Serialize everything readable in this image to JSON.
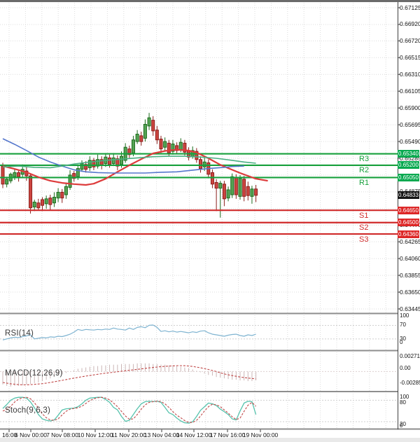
{
  "chart_data": {
    "type": "candlestick",
    "title": "AUD/USD 4H chart with pivot levels, moving averages, RSI, MACD and Stochastic",
    "x_axis": {
      "labels": [
        "16:00",
        "6 Nov 00:00",
        "7 Nov 08:00",
        "10 Nov 12:00",
        "11 Nov 20:00",
        "13 Nov 04:00",
        "14 Nov 12:00",
        "17 Nov 16:00",
        "19 Nov 00:00"
      ],
      "positions": [
        13,
        44,
        89,
        136,
        184,
        231,
        277,
        325,
        372
      ]
    },
    "y_axis": {
      "ticks": [
        {
          "text": "0.67125",
          "p": 0.67125
        },
        {
          "text": "0.66920",
          "p": 0.6692
        },
        {
          "text": "0.66720",
          "p": 0.6672
        },
        {
          "text": "0.66515",
          "p": 0.66515
        },
        {
          "text": "0.66310",
          "p": 0.6631
        },
        {
          "text": "0.66105",
          "p": 0.66105
        },
        {
          "text": "0.65900",
          "p": 0.659
        },
        {
          "text": "0.65695",
          "p": 0.65695
        },
        {
          "text": "0.65490",
          "p": 0.6549
        },
        {
          "text": "0.65285",
          "p": 0.65285
        },
        {
          "text": "0.64875",
          "p": 0.64875
        },
        {
          "text": "0.64470",
          "p": 0.6447
        },
        {
          "text": "0.64265",
          "p": 0.64265
        },
        {
          "text": "0.64060",
          "p": 0.6406
        },
        {
          "text": "0.63855",
          "p": 0.63855
        },
        {
          "text": "0.63650",
          "p": 0.6365
        },
        {
          "text": "0.63445",
          "p": 0.63445
        }
      ],
      "grid_prices": [
        0.67125,
        0.6692,
        0.6672,
        0.66515,
        0.6631,
        0.66105,
        0.659,
        0.65695,
        0.6549,
        0.65285,
        0.6508,
        0.64875,
        0.6467,
        0.6447,
        0.64265,
        0.6406,
        0.63855,
        0.6365,
        0.63445
      ],
      "range": [
        0.63445,
        0.67125
      ]
    },
    "pivots": [
      {
        "label": "R3",
        "box": "0.65340",
        "price": 0.6534,
        "kind": "resistance"
      },
      {
        "label": "R2",
        "box": "0.65200",
        "price": 0.652,
        "kind": "resistance"
      },
      {
        "label": "R1",
        "box": "0.65050",
        "price": 0.6505,
        "kind": "resistance"
      },
      {
        "label": "S1",
        "box": "0.64650",
        "price": 0.6465,
        "kind": "support"
      },
      {
        "label": "S2",
        "box": "0.64500",
        "price": 0.645,
        "kind": "support"
      },
      {
        "label": "S3",
        "box": "0.64360",
        "price": 0.6436,
        "kind": "support"
      }
    ],
    "current_price": {
      "value": 0.64833,
      "box": "0.64833"
    },
    "candles": [
      [
        0.6519,
        0.6523,
        0.6492,
        0.6497
      ],
      [
        0.6497,
        0.6506,
        0.6493,
        0.6503
      ],
      [
        0.6501,
        0.6511,
        0.6498,
        0.6509
      ],
      [
        0.6506,
        0.6516,
        0.6502,
        0.6511
      ],
      [
        0.6511,
        0.6514,
        0.65,
        0.6506
      ],
      [
        0.6509,
        0.6521,
        0.6505,
        0.6515
      ],
      [
        0.6513,
        0.6518,
        0.6501,
        0.6507
      ],
      [
        0.6507,
        0.6509,
        0.6461,
        0.6468
      ],
      [
        0.6469,
        0.6478,
        0.6464,
        0.6475
      ],
      [
        0.6474,
        0.6479,
        0.6465,
        0.6468
      ],
      [
        0.6478,
        0.6481,
        0.6464,
        0.6471
      ],
      [
        0.6473,
        0.6483,
        0.6467,
        0.6479
      ],
      [
        0.648,
        0.6484,
        0.6465,
        0.6472
      ],
      [
        0.6474,
        0.6487,
        0.6469,
        0.6481
      ],
      [
        0.648,
        0.6492,
        0.6475,
        0.6487
      ],
      [
        0.6487,
        0.6491,
        0.6474,
        0.648
      ],
      [
        0.6484,
        0.6499,
        0.6479,
        0.6494
      ],
      [
        0.6493,
        0.6514,
        0.649,
        0.6508
      ],
      [
        0.651,
        0.6513,
        0.65,
        0.6504
      ],
      [
        0.6506,
        0.6521,
        0.6502,
        0.6516
      ],
      [
        0.6515,
        0.6526,
        0.6512,
        0.6522
      ],
      [
        0.6521,
        0.6525,
        0.6511,
        0.6515
      ],
      [
        0.6517,
        0.6531,
        0.6513,
        0.6526
      ],
      [
        0.6526,
        0.6529,
        0.6514,
        0.6518
      ],
      [
        0.6519,
        0.6533,
        0.6516,
        0.6527
      ],
      [
        0.6527,
        0.6531,
        0.6515,
        0.652
      ],
      [
        0.6522,
        0.6535,
        0.6518,
        0.653
      ],
      [
        0.6529,
        0.6533,
        0.6517,
        0.6521
      ],
      [
        0.6522,
        0.6535,
        0.6519,
        0.6529
      ],
      [
        0.6528,
        0.6532,
        0.6514,
        0.6519
      ],
      [
        0.6521,
        0.6537,
        0.6517,
        0.6531
      ],
      [
        0.6526,
        0.6547,
        0.6523,
        0.6542
      ],
      [
        0.654,
        0.6544,
        0.6529,
        0.6533
      ],
      [
        0.6535,
        0.6556,
        0.6531,
        0.6551
      ],
      [
        0.6549,
        0.6563,
        0.6546,
        0.6558
      ],
      [
        0.6556,
        0.6561,
        0.6544,
        0.6549
      ],
      [
        0.6553,
        0.6576,
        0.6549,
        0.657
      ],
      [
        0.6568,
        0.6584,
        0.6563,
        0.6578
      ],
      [
        0.6575,
        0.658,
        0.6556,
        0.6562
      ],
      [
        0.6563,
        0.6568,
        0.6546,
        0.6551
      ],
      [
        0.6552,
        0.6556,
        0.6535,
        0.654
      ],
      [
        0.6542,
        0.6554,
        0.6538,
        0.6549
      ],
      [
        0.6547,
        0.6551,
        0.6531,
        0.6535
      ],
      [
        0.6537,
        0.6551,
        0.6533,
        0.6546
      ],
      [
        0.6544,
        0.6548,
        0.6534,
        0.6538
      ],
      [
        0.6539,
        0.6553,
        0.6536,
        0.6548
      ],
      [
        0.6547,
        0.6551,
        0.6532,
        0.6536
      ],
      [
        0.6538,
        0.6542,
        0.6526,
        0.653
      ],
      [
        0.6531,
        0.6543,
        0.6528,
        0.6538
      ],
      [
        0.6537,
        0.6541,
        0.6523,
        0.6527
      ],
      [
        0.6527,
        0.6531,
        0.6511,
        0.6516
      ],
      [
        0.6518,
        0.6529,
        0.6513,
        0.6524
      ],
      [
        0.6523,
        0.6527,
        0.6504,
        0.6509
      ],
      [
        0.6511,
        0.6515,
        0.6492,
        0.6497
      ],
      [
        0.6499,
        0.6503,
        0.6464,
        0.6492
      ],
      [
        0.6492,
        0.6501,
        0.6456,
        0.6498
      ],
      [
        0.6497,
        0.6501,
        0.647,
        0.6479
      ],
      [
        0.648,
        0.6494,
        0.6476,
        0.649
      ],
      [
        0.6484,
        0.651,
        0.648,
        0.6506
      ],
      [
        0.6505,
        0.6509,
        0.6479,
        0.6484
      ],
      [
        0.6482,
        0.6508,
        0.6478,
        0.6504
      ],
      [
        0.6503,
        0.6507,
        0.6476,
        0.6482
      ],
      [
        0.6494,
        0.65,
        0.6477,
        0.6483
      ],
      [
        0.6482,
        0.6495,
        0.6473,
        0.6491
      ],
      [
        0.6491,
        0.6496,
        0.6475,
        0.64833
      ]
    ],
    "overlays": [
      {
        "name": "ma-red",
        "points": [
          [
            0,
            0.6519
          ],
          [
            3,
            0.65155
          ],
          [
            6,
            0.65115
          ],
          [
            9,
            0.65055
          ],
          [
            12,
            0.6501
          ],
          [
            15,
            0.64985
          ],
          [
            18,
            0.6497
          ],
          [
            21,
            0.6496
          ],
          [
            23,
            0.64975
          ],
          [
            26,
            0.65035
          ],
          [
            29,
            0.6512
          ],
          [
            32,
            0.652
          ],
          [
            35,
            0.65275
          ],
          [
            38,
            0.65345
          ],
          [
            41,
            0.65375
          ],
          [
            44,
            0.6539
          ],
          [
            47,
            0.6538
          ],
          [
            49,
            0.65355
          ],
          [
            52,
            0.65285
          ],
          [
            55,
            0.65205
          ],
          [
            58,
            0.65145
          ],
          [
            60,
            0.65105
          ],
          [
            62,
            0.6507
          ],
          [
            64,
            0.65035
          ],
          [
            67,
            0.6501
          ]
        ]
      },
      {
        "name": "ma-blue",
        "points": [
          [
            0,
            0.65525
          ],
          [
            3,
            0.65455
          ],
          [
            6,
            0.6538
          ],
          [
            9,
            0.653
          ],
          [
            12,
            0.6524
          ],
          [
            15,
            0.6519
          ],
          [
            18,
            0.65145
          ],
          [
            21,
            0.6512
          ],
          [
            24,
            0.6511
          ],
          [
            28,
            0.65105
          ],
          [
            32,
            0.65105
          ],
          [
            36,
            0.65105
          ],
          [
            40,
            0.65115
          ],
          [
            44,
            0.6512
          ],
          [
            48,
            0.6514
          ],
          [
            52,
            0.6516
          ],
          [
            56,
            0.65175
          ],
          [
            58,
            0.65185
          ],
          [
            61,
            0.6519
          ]
        ]
      },
      {
        "name": "ma-teal",
        "points": [
          [
            0,
            0.6518
          ],
          [
            4,
            0.6519
          ],
          [
            8,
            0.65175
          ],
          [
            12,
            0.6517
          ],
          [
            15,
            0.6519
          ],
          [
            18,
            0.65215
          ],
          [
            22,
            0.6524
          ],
          [
            26,
            0.6526
          ],
          [
            30,
            0.65275
          ],
          [
            34,
            0.6529
          ],
          [
            38,
            0.65305
          ],
          [
            42,
            0.6531
          ],
          [
            46,
            0.6531
          ],
          [
            50,
            0.653
          ],
          [
            54,
            0.65285
          ],
          [
            58,
            0.6526
          ],
          [
            61,
            0.6524
          ],
          [
            64,
            0.65225
          ]
        ]
      }
    ],
    "indicators": {
      "rsi": {
        "label": "RSI(14)",
        "scale": [
          "100",
          "70",
          "30",
          "0"
        ],
        "levels": [
          70,
          30
        ],
        "range": [
          0,
          100
        ],
        "values": [
          27,
          30,
          33,
          35,
          34,
          37,
          39,
          42,
          30,
          32,
          34,
          33,
          36,
          35,
          38,
          37,
          40,
          44,
          50,
          58,
          55,
          58,
          57,
          56,
          58,
          57,
          59,
          58,
          62,
          59,
          58,
          56,
          62,
          58,
          64,
          66,
          63,
          70,
          71,
          64,
          52,
          54,
          51,
          53,
          50,
          52,
          50,
          48,
          51,
          49,
          53,
          54,
          48,
          44,
          42,
          40,
          38,
          41,
          43,
          44,
          40,
          38,
          42,
          40,
          44
        ]
      },
      "macd": {
        "label": "MACD(12,26,9)",
        "scale": [
          "0.002719",
          "0.00",
          "-0.002852"
        ],
        "range": [
          -0.002852,
          0.002719
        ],
        "hist_unit": 0.0001,
        "histogram": [
          -19,
          -21,
          -22,
          -21,
          -21,
          -20,
          -19,
          -18,
          -17,
          -16,
          -14,
          -12,
          -10,
          -8,
          -6,
          -4,
          -2,
          0,
          2,
          4,
          5,
          6,
          7,
          8,
          8,
          9,
          9,
          10,
          10,
          10,
          11,
          11,
          11,
          11,
          12,
          12,
          12,
          12,
          11,
          11,
          10,
          10,
          9,
          9,
          8,
          7,
          6,
          5,
          3,
          1,
          -1,
          -3,
          -5,
          -6,
          -8,
          -9,
          -10,
          -11,
          -12,
          -12,
          -13,
          -13,
          -14,
          -14,
          -13
        ],
        "signal_unit": 1e-05,
        "signal": [
          -160,
          -170,
          -180,
          -186,
          -192,
          -194,
          -195,
          -192,
          -188,
          -183,
          -178,
          -169,
          -160,
          -150,
          -140,
          -129,
          -118,
          -107,
          -96,
          -86,
          -76,
          -67,
          -58,
          -49,
          -40,
          -32,
          -24,
          -17,
          -10,
          -3,
          4,
          11,
          18,
          25,
          32,
          39,
          46,
          53,
          60,
          66,
          72,
          76,
          80,
          83,
          86,
          86,
          85,
          80,
          75,
          65,
          55,
          43,
          30,
          15,
          0,
          -18,
          -35,
          -48,
          -60,
          -70,
          -80,
          -88,
          -95,
          -102,
          -108
        ]
      },
      "stoch": {
        "label": "Stoch(9,6,3)",
        "scale": [
          "100",
          "80",
          "20",
          "0"
        ],
        "levels": [
          80,
          20
        ],
        "range": [
          0,
          100
        ],
        "main": [
          57,
          68,
          80,
          86,
          88,
          88,
          86,
          75,
          59,
          40,
          28,
          24,
          22,
          25,
          38,
          53,
          56,
          57,
          58,
          62,
          70,
          80,
          86,
          87,
          88,
          88,
          82,
          74,
          60,
          53,
          35,
          21,
          24,
          40,
          56,
          70,
          76,
          77,
          76,
          77,
          74,
          60,
          45,
          40,
          30,
          22,
          17,
          16,
          20,
          35,
          52,
          62,
          72,
          70,
          65,
          55,
          48,
          40,
          28,
          25,
          50,
          72,
          77,
          76,
          40
        ],
        "signal": [
          50,
          54,
          63,
          75,
          83,
          87,
          88,
          84,
          73,
          58,
          42,
          31,
          25,
          24,
          28,
          39,
          49,
          55,
          57,
          59,
          63,
          71,
          79,
          84,
          87,
          88,
          86,
          81,
          72,
          62,
          49,
          36,
          27,
          28,
          40,
          55,
          67,
          74,
          76,
          77,
          76,
          70,
          60,
          48,
          38,
          31,
          23,
          18,
          18,
          24,
          36,
          50,
          62,
          69,
          67,
          62,
          53,
          44,
          34,
          26,
          30,
          49,
          66,
          74,
          63
        ]
      }
    },
    "colors": {
      "bull_body": "#55a455",
      "bull_border": "#1c6b1c",
      "bear_body": "#cd4540",
      "bear_border": "#8c1f1c",
      "ma_red": "#dd3b3b",
      "ma_blue": "#5577cc",
      "ma_teal": "#4aaf82",
      "pivot_green": "#17a03c",
      "pivot_red": "#d02a2a",
      "box_green": "#07a94f",
      "box_red": "#dd2727",
      "box_black": "#151515",
      "rsi_line": "#7fb4d1",
      "macd_signal": "#c04848",
      "macd_hist": "#cbb6b6",
      "stoch_main": "#56c3ad",
      "stoch_signal": "#c04848",
      "grid": "#dcdcdc",
      "separator": "#8e8e8e",
      "axis": "#3f3f3f",
      "footer_strip": "#e9e9e9"
    }
  }
}
